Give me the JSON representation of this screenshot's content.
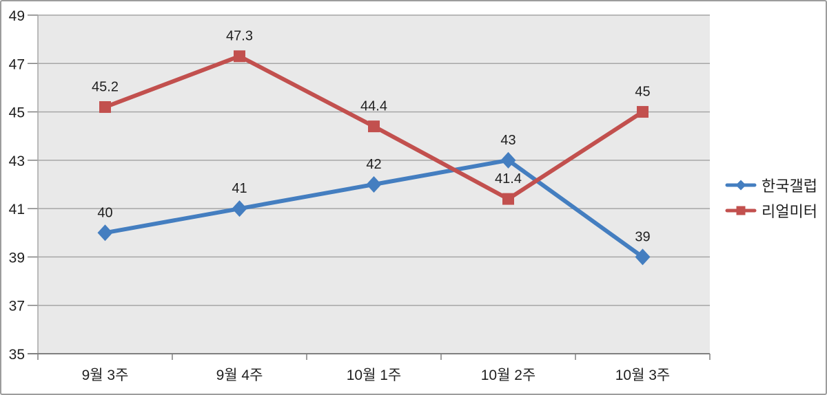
{
  "chart_data": {
    "type": "line",
    "title": "",
    "categories": [
      "9월 3주",
      "9월 4주",
      "10월 1주",
      "10월 2주",
      "10월 3주"
    ],
    "series": [
      {
        "name": "한국갤럽",
        "values": [
          40,
          41,
          42,
          43,
          39
        ],
        "labels": [
          "40",
          "41",
          "42",
          "43",
          "39"
        ],
        "color": "#447ec0",
        "marker": "diamond"
      },
      {
        "name": "리얼미터",
        "values": [
          45.2,
          47.3,
          44.4,
          41.4,
          45
        ],
        "labels": [
          "45.2",
          "47.3",
          "44.4",
          "41.4",
          "45"
        ],
        "color": "#c2504e",
        "marker": "square"
      }
    ],
    "xlabel": "",
    "ylabel": "",
    "ylim": [
      35,
      49
    ],
    "yticks": [
      35,
      37,
      39,
      41,
      43,
      45,
      47,
      49
    ],
    "grid": true,
    "legend_position": "right",
    "colors": {
      "plot_bg": "#e9e9e9",
      "gridline": "#a6a6a6",
      "axis": "#7f7f7f",
      "text": "#1f1f1f",
      "page_border": "#9c9c9c"
    }
  }
}
